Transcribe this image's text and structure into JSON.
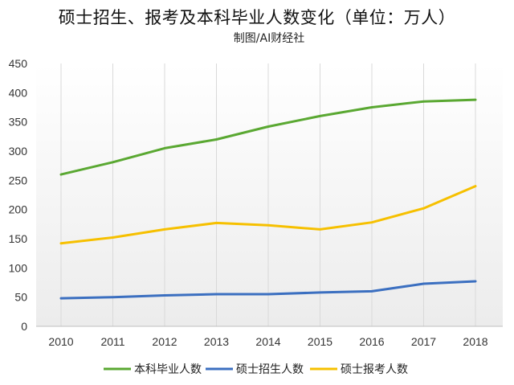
{
  "chart_data": {
    "type": "line",
    "title": "硕士招生、报考及本科毕业人数变化（单位：万人）",
    "subtitle": "制图/AI财经社",
    "xlabel": "",
    "ylabel": "",
    "x": [
      "2010",
      "2011",
      "2012",
      "2013",
      "2014",
      "2015",
      "2016",
      "2017",
      "2018"
    ],
    "ylim": [
      0,
      450
    ],
    "yticks": [
      "0",
      "50",
      "100",
      "150",
      "200",
      "250",
      "300",
      "350",
      "400",
      "450"
    ],
    "grid": "vertical",
    "legend_position": "bottom",
    "series": [
      {
        "name": "本科毕业人数",
        "color": "#5aa832",
        "values": [
          260,
          281,
          305,
          320,
          342,
          360,
          375,
          385,
          388
        ]
      },
      {
        "name": "硕士招生人数",
        "color": "#3b6fc0",
        "values": [
          48,
          50,
          53,
          55,
          55,
          58,
          60,
          73,
          77
        ]
      },
      {
        "name": "硕士报考人数",
        "color": "#f6c000",
        "values": [
          142,
          152,
          166,
          177,
          173,
          166,
          178,
          202,
          240
        ]
      }
    ]
  }
}
